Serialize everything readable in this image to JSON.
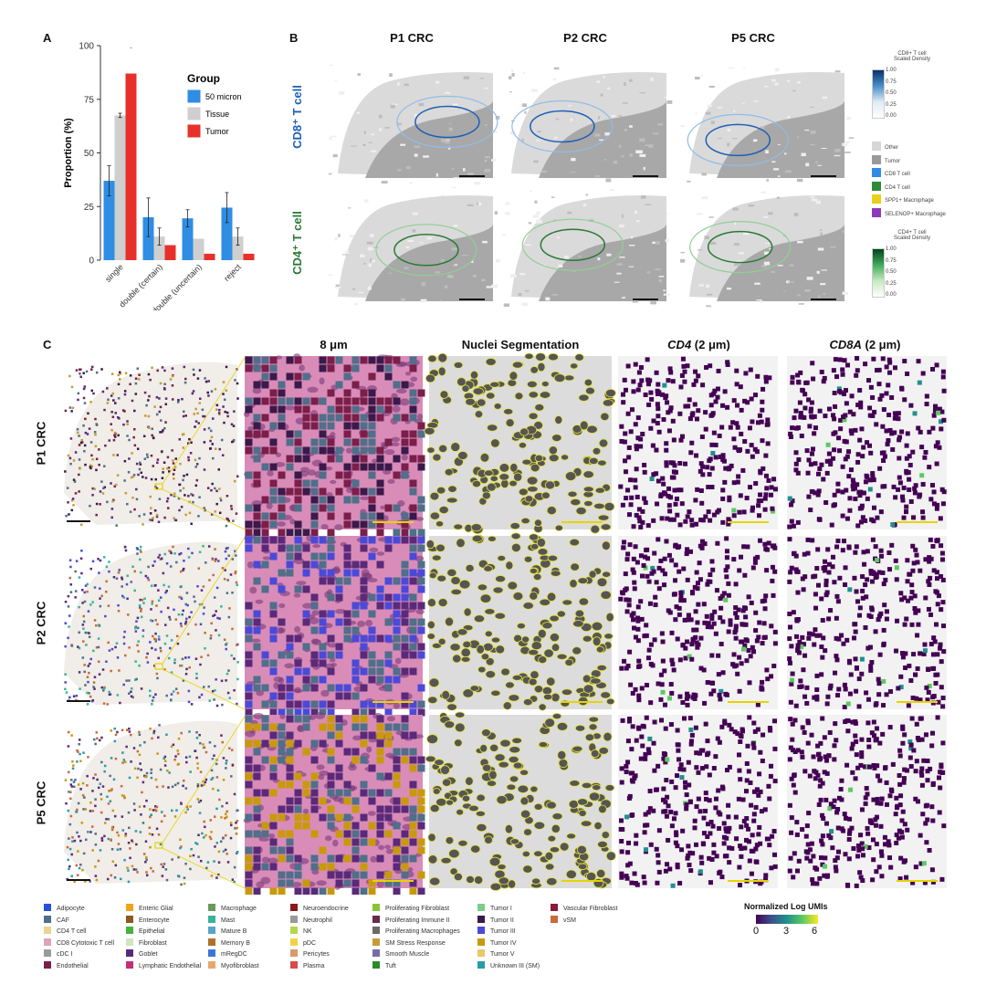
{
  "panelA": {
    "letter": "A",
    "ylabel": "Proportion (%)",
    "legend_title": "Group",
    "legend_labels": [
      "50 micron",
      "Tissue",
      "Tumor"
    ],
    "colors": [
      "#2f8de4",
      "#cfcfcf",
      "#e8302b"
    ],
    "significance_mark": "-"
  },
  "chart_data": {
    "type": "bar",
    "title": "",
    "ylabel": "Proportion (%)",
    "xlabel": "",
    "categories": [
      "single",
      "double (certain)",
      "double (uncertain)",
      "reject"
    ],
    "series": [
      {
        "name": "50 micron",
        "values": [
          37,
          20,
          19.5,
          24.5
        ],
        "err": [
          7,
          9,
          4,
          7
        ]
      },
      {
        "name": "Tissue",
        "values": [
          67.5,
          11,
          10,
          11
        ],
        "err": [
          1,
          4,
          0,
          4
        ]
      },
      {
        "name": "Tumor",
        "values": [
          87,
          7,
          3,
          3
        ],
        "err": [
          0,
          0,
          0,
          0
        ]
      }
    ],
    "ylim": [
      0,
      100
    ],
    "yticks": [
      0,
      25,
      50,
      75,
      100
    ],
    "legend_position": "right",
    "grid": false
  },
  "panelB": {
    "letter": "B",
    "cols": [
      "P1 CRC",
      "P2 CRC",
      "P5 CRC"
    ],
    "rows": [
      "CD8⁺ T cell",
      "CD4⁺ T cell"
    ],
    "cd8_scale_title": "CD8+ T cell\nScaled Density",
    "cd4_scale_title": "CD4+ T cell\nScaled Density",
    "scale_ticks": [
      "1.00",
      "0.75",
      "0.50",
      "0.25",
      "0.00"
    ],
    "cell_legend": [
      {
        "label": "Other",
        "color": "#d6d6d6"
      },
      {
        "label": "Tumor",
        "color": "#9a9a9a"
      },
      {
        "label": "CD8 T cell",
        "color": "#2f8de4"
      },
      {
        "label": "CD4 T cell",
        "color": "#2f8a3a"
      },
      {
        "label": "SPP1+ Macrophage",
        "color": "#e8cf1a"
      },
      {
        "label": "SELENOP+ Macrophage",
        "color": "#8e3bb7"
      }
    ]
  },
  "panelC": {
    "letter": "C",
    "cols": [
      "8 μm",
      "Nuclei Segmentation",
      "CD4 (2 μm)",
      "CD8A (2 μm)"
    ],
    "cols_gene": [
      "CD4",
      "CD8A"
    ],
    "cols_suffix": " (2 μm)",
    "rows": [
      "P1 CRC",
      "P2 CRC",
      "P5 CRC"
    ],
    "colorbar_title": "Normalized Log UMIs",
    "colorbar_ticks": [
      "0",
      "3",
      "6"
    ]
  },
  "celltype_legend": [
    {
      "label": "Adipocyte",
      "color": "#2a4fd6"
    },
    {
      "label": "CAF",
      "color": "#4f6f8a"
    },
    {
      "label": "CD4 T cell",
      "color": "#ead58a"
    },
    {
      "label": "CD8 Cytotoxic T cell",
      "color": "#e0a2b8"
    },
    {
      "label": "cDC I",
      "color": "#9a9a9a"
    },
    {
      "label": "Endothelial",
      "color": "#7a1f4a"
    },
    {
      "label": "Enteric Glial",
      "color": "#f1a31c"
    },
    {
      "label": "Enterocyte",
      "color": "#8a5a22"
    },
    {
      "label": "Epithelial",
      "color": "#42b53a"
    },
    {
      "label": "Fibroblast",
      "color": "#cfe6c2"
    },
    {
      "label": "Goblet",
      "color": "#5a2a7a"
    },
    {
      "label": "Lymphatic Endothelial",
      "color": "#c2307a"
    },
    {
      "label": "Macrophage",
      "color": "#6a9a5a"
    },
    {
      "label": "Mast",
      "color": "#38b49a"
    },
    {
      "label": "Mature B",
      "color": "#5aa2c8"
    },
    {
      "label": "Memory B",
      "color": "#b0702a"
    },
    {
      "label": "mRegDC",
      "color": "#3a78d8"
    },
    {
      "label": "Myofibroblast",
      "color": "#e6a86a"
    },
    {
      "label": "Neuroendocrine",
      "color": "#8a1a1a"
    },
    {
      "label": "Neutrophil",
      "color": "#9a9a9a"
    },
    {
      "label": "NK",
      "color": "#b2d84a"
    },
    {
      "label": "pDC",
      "color": "#f0d24a"
    },
    {
      "label": "Pericytes",
      "color": "#d89a6a"
    },
    {
      "label": "Plasma",
      "color": "#d84a4a"
    },
    {
      "label": "Proliferating Fibroblast",
      "color": "#8ac23a"
    },
    {
      "label": "Proliferating Immune II",
      "color": "#6a2a4a"
    },
    {
      "label": "Proliferating Macrophages",
      "color": "#6a6a6a"
    },
    {
      "label": "SM Stress Response",
      "color": "#c89a3a"
    },
    {
      "label": "Smooth Muscle",
      "color": "#7a6aa8"
    },
    {
      "label": "Tuft",
      "color": "#2a8a2a"
    },
    {
      "label": "Tumor I",
      "color": "#7ad08a"
    },
    {
      "label": "Tumor II",
      "color": "#3a1a4a"
    },
    {
      "label": "Tumor III",
      "color": "#4a4ad8"
    },
    {
      "label": "Tumor IV",
      "color": "#c89a0a"
    },
    {
      "label": "Tumor V",
      "color": "#e8c86a"
    },
    {
      "label": "Unknown III (SM)",
      "color": "#2a9aaa"
    },
    {
      "label": "Vascular Fibroblast",
      "color": "#8a1a3a"
    },
    {
      "label": "vSM",
      "color": "#c86a3a"
    }
  ]
}
